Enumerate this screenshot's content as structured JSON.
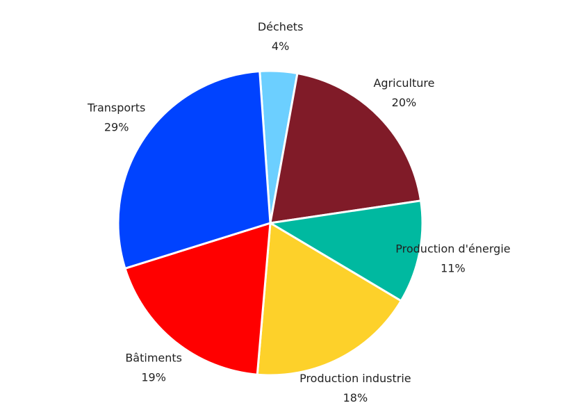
{
  "chart_data": {
    "type": "pie",
    "categories": [
      "Déchets",
      "Agriculture",
      "Production d'énergie",
      "Production industrie",
      "Bâtiments",
      "Transports"
    ],
    "values": [
      4,
      20,
      11,
      18,
      19,
      29
    ],
    "value_labels": [
      "4%",
      "20%",
      "11%",
      "18%",
      "19%",
      "29%"
    ],
    "colors": [
      "#6ccfff",
      "#801b28",
      "#00b9a0",
      "#fdd12a",
      "#ff0000",
      "#0043ff"
    ]
  }
}
